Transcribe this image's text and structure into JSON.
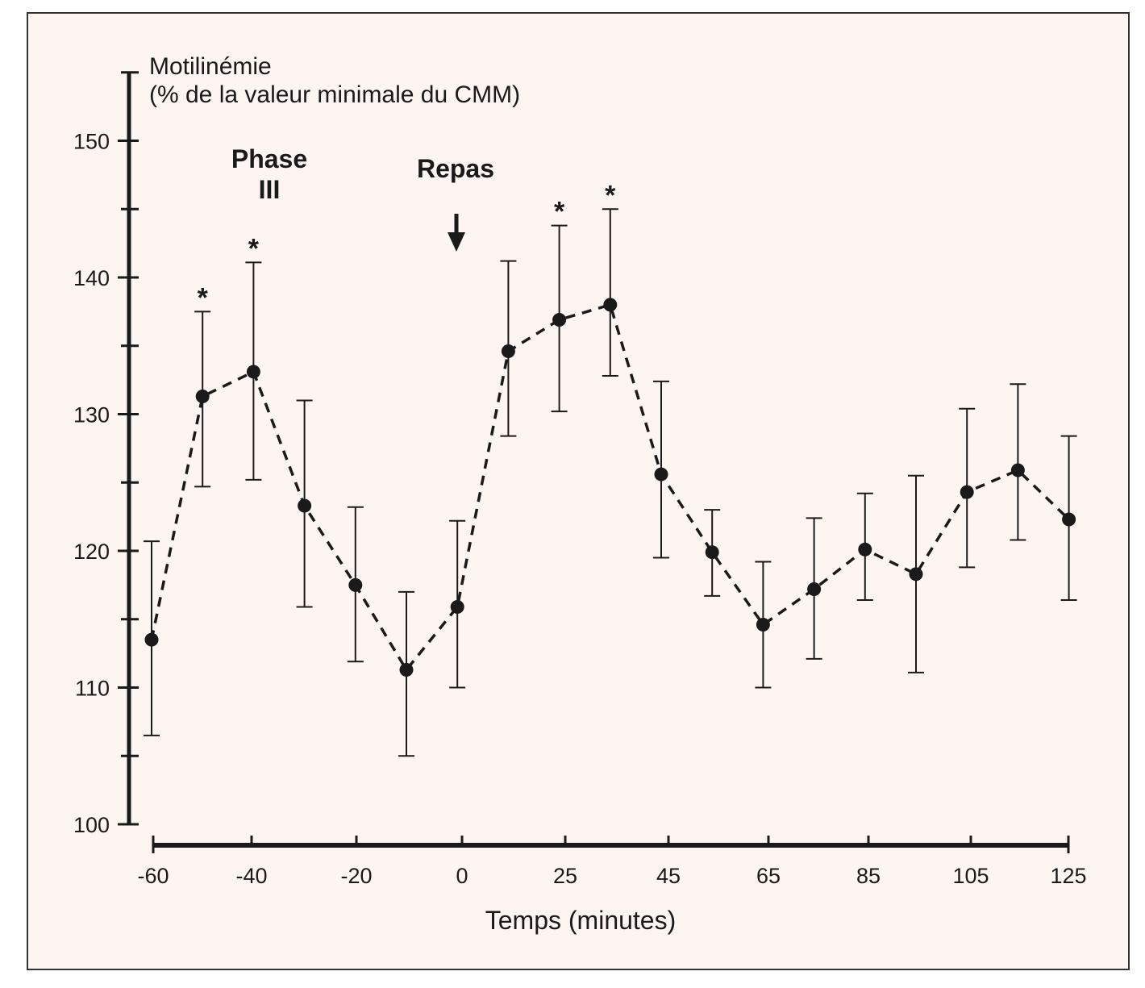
{
  "colors": {
    "panel_background": "#fdf5f1",
    "ink": "#1a1a1a"
  },
  "chart_data": {
    "type": "line",
    "line_style": "dashed",
    "marker": "filled-circle",
    "error_bars": true,
    "title": "",
    "ylabel_line1": "Motilinémie",
    "ylabel_line2": "(% de la valeur minimale du CMM)",
    "xlabel": "Temps (minutes)",
    "ylim": [
      100,
      155
    ],
    "yticks": [
      100,
      110,
      120,
      130,
      140,
      150
    ],
    "ytick_labels": [
      "100",
      "110",
      "120",
      "130",
      "140",
      "150"
    ],
    "y_minor_step": 5,
    "xticks": [
      -60,
      -40,
      -20,
      0,
      25,
      45,
      65,
      85,
      105,
      125
    ],
    "xtick_labels": [
      "-60",
      "-40",
      "-20",
      "0",
      "25",
      "45",
      "65",
      "85",
      "105",
      "125"
    ],
    "grid": false,
    "legend": "none",
    "series": [
      {
        "x": [
          -60,
          -50,
          -40,
          -30,
          -20,
          -10,
          0,
          10,
          20,
          30,
          40,
          50,
          60,
          70,
          80,
          90,
          100,
          110,
          120
        ],
        "y": [
          113.5,
          131.3,
          133.1,
          123.3,
          117.5,
          111.3,
          115.9,
          134.6,
          136.9,
          138.0,
          125.6,
          119.9,
          114.6,
          117.2,
          120.1,
          118.3,
          124.3,
          125.9,
          122.3
        ],
        "err_upper": [
          120.7,
          137.5,
          141.1,
          131.0,
          123.2,
          117.0,
          122.2,
          141.2,
          143.8,
          145.0,
          132.4,
          123.0,
          119.2,
          122.4,
          124.2,
          125.5,
          130.4,
          132.2,
          128.4
        ],
        "err_lower": [
          106.5,
          124.7,
          125.2,
          115.9,
          111.9,
          105.0,
          110.0,
          128.4,
          130.2,
          132.8,
          119.5,
          116.7,
          110.0,
          112.1,
          116.4,
          111.1,
          118.8,
          120.8,
          116.4
        ]
      }
    ],
    "significance_markers": [
      {
        "x": -50,
        "label": "*"
      },
      {
        "x": -40,
        "label": "*"
      },
      {
        "x": 20,
        "label": "*"
      },
      {
        "x": 30,
        "label": "*"
      }
    ],
    "annotations": [
      {
        "line1": "Phase",
        "line2": "III",
        "x": -40
      },
      {
        "line1": "Repas",
        "x": 0,
        "arrow": "down"
      }
    ]
  }
}
